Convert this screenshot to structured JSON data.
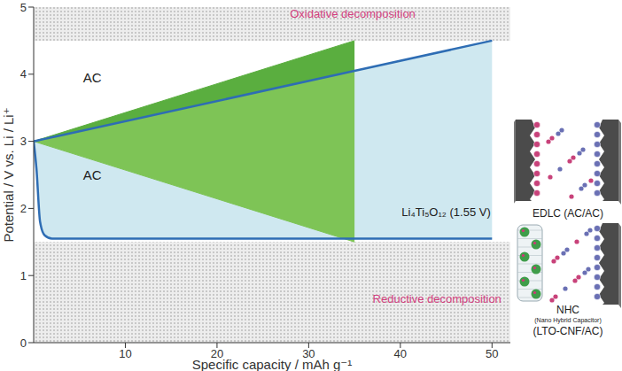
{
  "chart_data": {
    "type": "line",
    "xlabel": "Specific capacity / mAh g⁻¹",
    "ylabel": "Potential / V vs. Li / Li⁺",
    "xlim": [
      0,
      52
    ],
    "xticks": [
      10,
      20,
      30,
      40,
      50
    ],
    "ylim": [
      0,
      5
    ],
    "yticks": [
      0,
      1,
      2,
      3,
      4,
      5
    ],
    "grid": false,
    "series": [
      {
        "type": "line",
        "color": "#2e6db4",
        "x": [
          0,
          0.3,
          0.7,
          1.2,
          2,
          35,
          50
        ],
        "values": [
          3,
          2.6,
          1.8,
          1.6,
          1.55,
          1.55,
          1.55
        ]
      },
      {
        "type": "line",
        "color": "#2e6db4",
        "x": [
          0,
          0.3,
          0.7,
          1.2,
          2,
          35,
          50
        ],
        "values": [
          3,
          3.009,
          3.021,
          3.036,
          3.06,
          4.05,
          4.5
        ]
      },
      {
        "type": "area",
        "color": "#5aae3f",
        "x": [
          0,
          35
        ],
        "values": [
          3,
          4.5
        ]
      },
      {
        "type": "area",
        "color": "#7ec456",
        "x": [
          0,
          35
        ],
        "values": [
          3,
          1.5
        ]
      }
    ],
    "annotations": [
      {
        "text": "AC",
        "x": 6.4,
        "y": 3.95
      },
      {
        "text": "AC",
        "x": 6.4,
        "y": 2.5
      },
      {
        "text": "Li₄Ti₅O₁₂ (1.55 V)",
        "x": 45,
        "y": 1.95
      }
    ],
    "regions": [
      {
        "label": "Oxidative decomposition",
        "ylim": [
          4.5,
          5
        ],
        "x": 34.8,
        "y": 4.9
      },
      {
        "label": "Reductive decomposition",
        "ylim": [
          0,
          1.5
        ],
        "x": 44,
        "y": 0.65
      }
    ],
    "illustrations": [
      {
        "label": "EDLC (AC/AC)"
      },
      {
        "label": "NHC",
        "note": "(Nano Hybrid Capacitor)",
        "detail": "(LTO-CNF/AC)"
      }
    ]
  }
}
